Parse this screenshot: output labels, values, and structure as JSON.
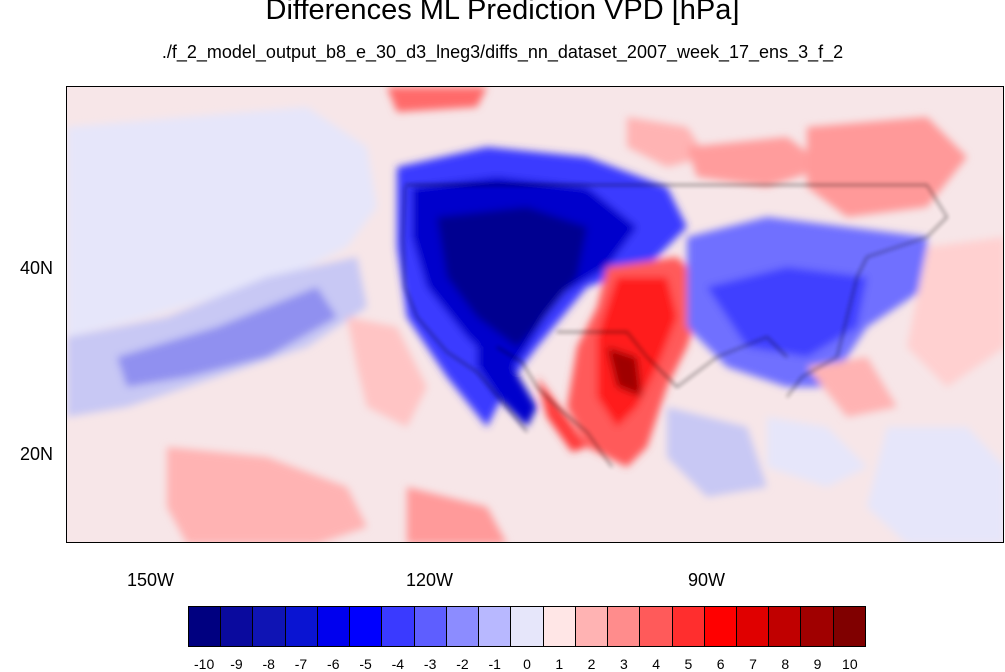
{
  "title": "Differences ML Prediction VPD [hPa]",
  "subtitle": "./f_2_model_output_b8_e_30_d3_lneg3/diffs_nn_dataset_2007_week_17_ens_3_f_2",
  "map": {
    "lat_labels": [
      "40N",
      "20N"
    ],
    "lon_labels": [
      "150W",
      "120W",
      "90W"
    ]
  },
  "colorbar": {
    "labels": [
      "-10",
      "-9",
      "-8",
      "-7",
      "-6",
      "-5",
      "-4",
      "-3",
      "-2",
      "-1",
      "0",
      "1",
      "2",
      "3",
      "4",
      "5",
      "6",
      "7",
      "8",
      "9",
      "10"
    ],
    "colors": [
      "#000080",
      "#0a0a9e",
      "#0f14b4",
      "#0a14d2",
      "#0000ee",
      "#0000ff",
      "#3a3aff",
      "#5e5eff",
      "#8c8cff",
      "#b8b8ff",
      "#e6e6fa",
      "#ffe6e6",
      "#ffb3b3",
      "#ff8c8c",
      "#ff5a5a",
      "#ff2e2e",
      "#ff0000",
      "#e00000",
      "#c00000",
      "#a00000",
      "#800000"
    ]
  }
}
